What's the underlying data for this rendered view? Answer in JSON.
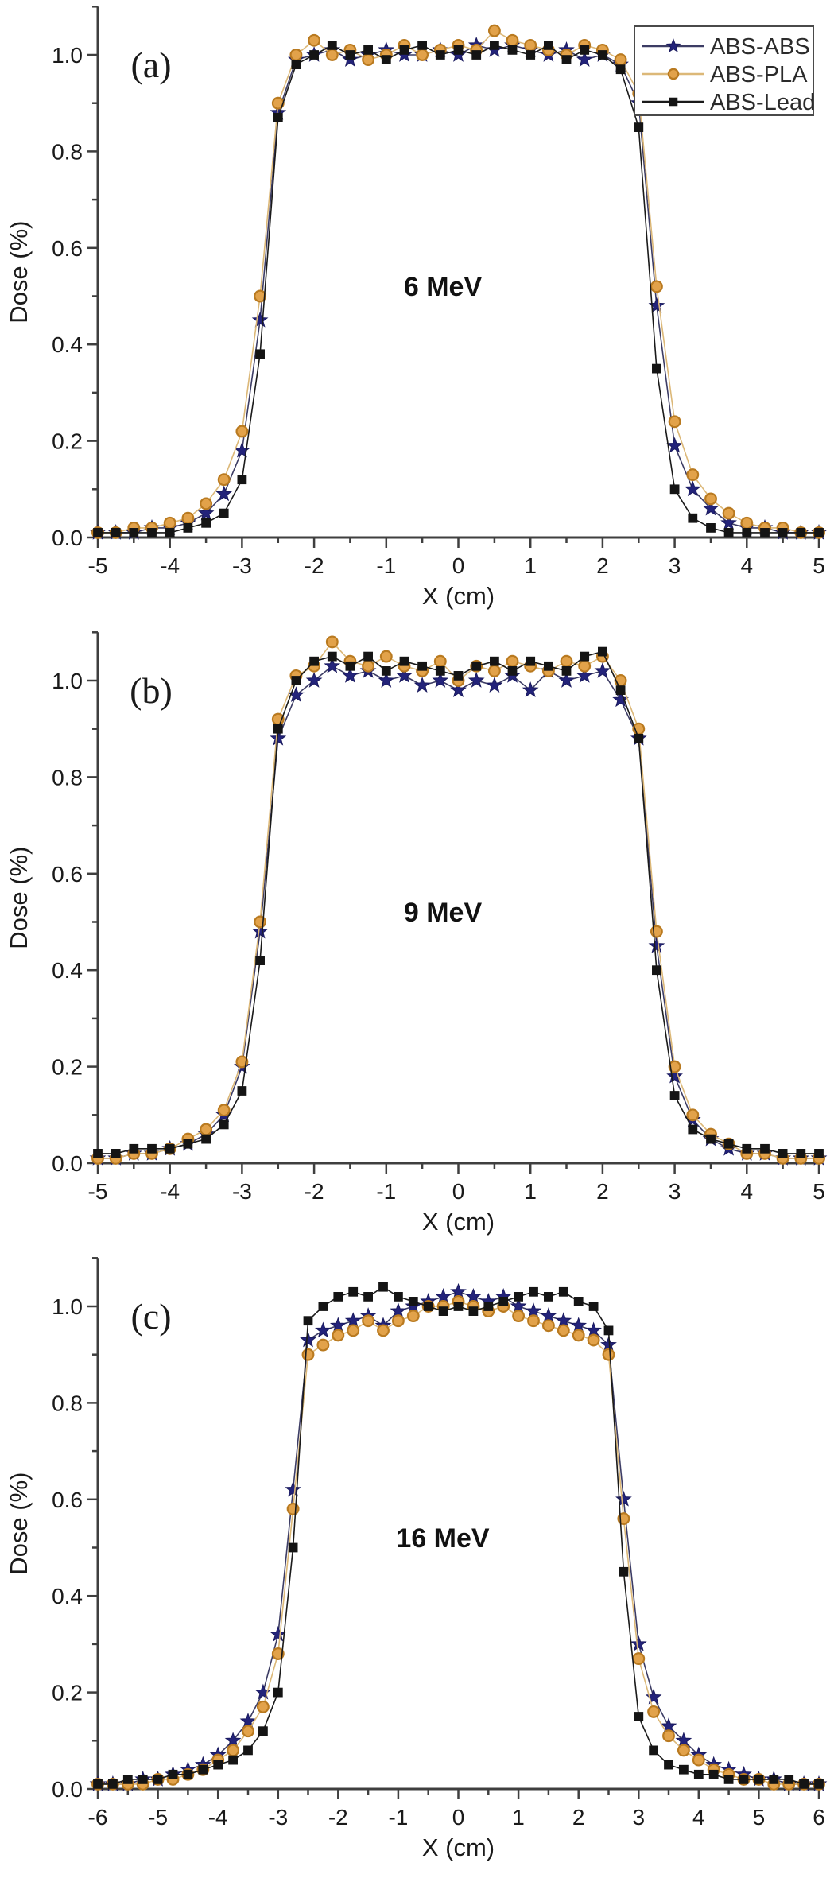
{
  "figure": {
    "background": "#ffffff",
    "text_color": "#1a1a1a",
    "axis_color": "#3f3f3f"
  },
  "chart_data": [
    {
      "id": "a",
      "type": "scatter",
      "panel_label": "(a)",
      "annotation": "6 MeV",
      "xlabel": "X (cm)",
      "ylabel": "Dose (%)",
      "xlim": [
        -5,
        5
      ],
      "ylim": [
        0,
        1.1
      ],
      "x_major_ticks": [
        -5,
        -4,
        -3,
        -2,
        -1,
        0,
        1,
        2,
        3,
        4,
        5
      ],
      "y_major_ticks": [
        0.0,
        0.2,
        0.4,
        0.6,
        0.8,
        1.0
      ],
      "x_minor_step": 0.5,
      "y_minor_step": 0.1,
      "grid": false,
      "legend": {
        "show": true,
        "position": "top-right"
      },
      "x": [
        -5,
        -4.75,
        -4.5,
        -4.25,
        -4,
        -3.75,
        -3.5,
        -3.25,
        -3,
        -2.75,
        -2.5,
        -2.25,
        -2,
        -1.75,
        -1.5,
        -1.25,
        -1,
        -0.75,
        -0.5,
        -0.25,
        0,
        0.25,
        0.5,
        0.75,
        1,
        1.25,
        1.5,
        1.75,
        2,
        2.25,
        2.5,
        2.75,
        3,
        3.25,
        3.5,
        3.75,
        4,
        4.25,
        4.5,
        4.75,
        5
      ],
      "series": [
        {
          "name": "ABS-ABS",
          "marker": "star",
          "marker_color": "#23237a",
          "marker_edge": "#1a1a5e",
          "line_color": "#3c3c64",
          "values": [
            0.01,
            0.01,
            0.01,
            0.02,
            0.02,
            0.03,
            0.05,
            0.09,
            0.18,
            0.45,
            0.88,
            0.99,
            1.0,
            1.01,
            0.99,
            1.0,
            1.01,
            1.0,
            1.0,
            1.01,
            1.0,
            1.02,
            1.01,
            1.02,
            1.01,
            1.0,
            1.01,
            0.99,
            1.0,
            0.98,
            0.9,
            0.48,
            0.19,
            0.1,
            0.06,
            0.03,
            0.02,
            0.02,
            0.01,
            0.01,
            0.01
          ]
        },
        {
          "name": "ABS-PLA",
          "marker": "circle",
          "marker_color": "#e2a24a",
          "marker_edge": "#b97a20",
          "line_color": "#dcb878",
          "values": [
            0.01,
            0.01,
            0.02,
            0.02,
            0.03,
            0.04,
            0.07,
            0.12,
            0.22,
            0.5,
            0.9,
            1.0,
            1.03,
            1.0,
            1.01,
            0.99,
            1.0,
            1.02,
            1.0,
            1.01,
            1.02,
            1.01,
            1.05,
            1.03,
            1.02,
            1.01,
            1.0,
            1.02,
            1.01,
            0.99,
            0.92,
            0.52,
            0.24,
            0.13,
            0.08,
            0.05,
            0.03,
            0.02,
            0.02,
            0.01,
            0.01
          ]
        },
        {
          "name": "ABS-Lead",
          "marker": "square",
          "marker_color": "#141414",
          "marker_edge": "#000000",
          "line_color": "#1a1a1a",
          "values": [
            0.01,
            0.01,
            0.01,
            0.01,
            0.01,
            0.02,
            0.03,
            0.05,
            0.12,
            0.38,
            0.87,
            0.98,
            1.0,
            1.02,
            1.0,
            1.01,
            0.99,
            1.01,
            1.02,
            1.0,
            1.01,
            1.0,
            1.02,
            1.01,
            1.0,
            1.02,
            0.99,
            1.01,
            1.0,
            0.97,
            0.85,
            0.35,
            0.1,
            0.04,
            0.02,
            0.01,
            0.01,
            0.01,
            0.01,
            0.01,
            0.01
          ]
        }
      ]
    },
    {
      "id": "b",
      "type": "scatter",
      "panel_label": "(b)",
      "annotation": "9 MeV",
      "xlabel": "X (cm)",
      "ylabel": "Dose (%)",
      "xlim": [
        -5,
        5
      ],
      "ylim": [
        0,
        1.1
      ],
      "x_major_ticks": [
        -5,
        -4,
        -3,
        -2,
        -1,
        0,
        1,
        2,
        3,
        4,
        5
      ],
      "y_major_ticks": [
        0.0,
        0.2,
        0.4,
        0.6,
        0.8,
        1.0
      ],
      "x_minor_step": 0.5,
      "y_minor_step": 0.1,
      "grid": false,
      "legend": {
        "show": false
      },
      "x": [
        -5,
        -4.75,
        -4.5,
        -4.25,
        -4,
        -3.75,
        -3.5,
        -3.25,
        -3,
        -2.75,
        -2.5,
        -2.25,
        -2,
        -1.75,
        -1.5,
        -1.25,
        -1,
        -0.75,
        -0.5,
        -0.25,
        0,
        0.25,
        0.5,
        0.75,
        1,
        1.25,
        1.5,
        1.75,
        2,
        2.25,
        2.5,
        2.75,
        3,
        3.25,
        3.5,
        3.75,
        4,
        4.25,
        4.5,
        4.75,
        5
      ],
      "series": [
        {
          "name": "ABS-ABS",
          "marker": "star",
          "marker_color": "#23237a",
          "marker_edge": "#1a1a5e",
          "line_color": "#3c3c64",
          "values": [
            0.01,
            0.01,
            0.02,
            0.02,
            0.03,
            0.04,
            0.06,
            0.1,
            0.2,
            0.48,
            0.88,
            0.97,
            1.0,
            1.03,
            1.01,
            1.02,
            1.0,
            1.01,
            0.99,
            1.0,
            0.98,
            1.0,
            0.99,
            1.01,
            0.98,
            1.02,
            1.0,
            1.01,
            1.02,
            0.96,
            0.88,
            0.45,
            0.18,
            0.09,
            0.05,
            0.03,
            0.02,
            0.02,
            0.01,
            0.01,
            0.01
          ]
        },
        {
          "name": "ABS-PLA",
          "marker": "circle",
          "marker_color": "#e2a24a",
          "marker_edge": "#b97a20",
          "line_color": "#dcb878",
          "values": [
            0.01,
            0.01,
            0.02,
            0.02,
            0.03,
            0.05,
            0.07,
            0.11,
            0.21,
            0.5,
            0.92,
            1.01,
            1.03,
            1.08,
            1.04,
            1.03,
            1.05,
            1.03,
            1.02,
            1.04,
            1.0,
            1.03,
            1.02,
            1.04,
            1.03,
            1.02,
            1.04,
            1.03,
            1.05,
            1.0,
            0.9,
            0.48,
            0.2,
            0.1,
            0.06,
            0.04,
            0.02,
            0.02,
            0.01,
            0.01,
            0.01
          ]
        },
        {
          "name": "ABS-Lead",
          "marker": "square",
          "marker_color": "#141414",
          "marker_edge": "#000000",
          "line_color": "#1a1a1a",
          "values": [
            0.02,
            0.02,
            0.03,
            0.03,
            0.03,
            0.04,
            0.05,
            0.08,
            0.15,
            0.42,
            0.9,
            1.0,
            1.04,
            1.05,
            1.03,
            1.05,
            1.02,
            1.04,
            1.03,
            1.02,
            1.01,
            1.03,
            1.04,
            1.02,
            1.04,
            1.03,
            1.02,
            1.05,
            1.06,
            0.98,
            0.88,
            0.4,
            0.14,
            0.07,
            0.05,
            0.04,
            0.03,
            0.03,
            0.02,
            0.02,
            0.02
          ]
        }
      ]
    },
    {
      "id": "c",
      "type": "scatter",
      "panel_label": "(c)",
      "annotation": "16 MeV",
      "xlabel": "X (cm)",
      "ylabel": "Dose (%)",
      "xlim": [
        -6,
        6
      ],
      "ylim": [
        0,
        1.1
      ],
      "x_major_ticks": [
        -6,
        -5,
        -4,
        -3,
        -2,
        -1,
        0,
        1,
        2,
        3,
        4,
        5,
        6
      ],
      "y_major_ticks": [
        0.0,
        0.2,
        0.4,
        0.6,
        0.8,
        1.0
      ],
      "x_minor_step": 0.5,
      "y_minor_step": 0.1,
      "grid": false,
      "legend": {
        "show": false
      },
      "x": [
        -6,
        -5.75,
        -5.5,
        -5.25,
        -5,
        -4.75,
        -4.5,
        -4.25,
        -4,
        -3.75,
        -3.5,
        -3.25,
        -3,
        -2.75,
        -2.5,
        -2.25,
        -2,
        -1.75,
        -1.5,
        -1.25,
        -1,
        -0.75,
        -0.5,
        -0.25,
        0,
        0.25,
        0.5,
        0.75,
        1,
        1.25,
        1.5,
        1.75,
        2,
        2.25,
        2.5,
        2.75,
        3,
        3.25,
        3.5,
        3.75,
        4,
        4.25,
        4.5,
        4.75,
        5,
        5.25,
        5.5,
        5.75,
        6
      ],
      "series": [
        {
          "name": "ABS-ABS",
          "marker": "star",
          "marker_color": "#23237a",
          "marker_edge": "#1a1a5e",
          "line_color": "#3c3c64",
          "values": [
            0.01,
            0.01,
            0.01,
            0.02,
            0.02,
            0.03,
            0.04,
            0.05,
            0.07,
            0.1,
            0.14,
            0.2,
            0.32,
            0.62,
            0.93,
            0.95,
            0.96,
            0.97,
            0.98,
            0.96,
            0.99,
            1.0,
            1.01,
            1.02,
            1.03,
            1.02,
            1.01,
            1.02,
            1.0,
            0.99,
            0.98,
            0.97,
            0.96,
            0.95,
            0.92,
            0.6,
            0.3,
            0.19,
            0.13,
            0.1,
            0.07,
            0.05,
            0.04,
            0.03,
            0.02,
            0.02,
            0.01,
            0.01,
            0.01
          ]
        },
        {
          "name": "ABS-PLA",
          "marker": "circle",
          "marker_color": "#e2a24a",
          "marker_edge": "#b97a20",
          "line_color": "#dcb878",
          "values": [
            0.01,
            0.01,
            0.01,
            0.01,
            0.02,
            0.02,
            0.03,
            0.04,
            0.06,
            0.08,
            0.12,
            0.17,
            0.28,
            0.58,
            0.9,
            0.92,
            0.94,
            0.95,
            0.97,
            0.95,
            0.97,
            0.98,
            1.0,
            1.0,
            1.01,
            1.0,
            0.99,
            1.0,
            0.98,
            0.97,
            0.96,
            0.95,
            0.94,
            0.93,
            0.9,
            0.56,
            0.27,
            0.16,
            0.11,
            0.08,
            0.06,
            0.04,
            0.03,
            0.02,
            0.02,
            0.01,
            0.01,
            0.01,
            0.01
          ]
        },
        {
          "name": "ABS-Lead",
          "marker": "square",
          "marker_color": "#141414",
          "marker_edge": "#000000",
          "line_color": "#1a1a1a",
          "values": [
            0.01,
            0.01,
            0.02,
            0.02,
            0.02,
            0.03,
            0.03,
            0.04,
            0.05,
            0.06,
            0.08,
            0.12,
            0.2,
            0.5,
            0.97,
            1.0,
            1.02,
            1.03,
            1.02,
            1.04,
            1.02,
            1.01,
            1.0,
            0.99,
            1.0,
            0.99,
            1.0,
            1.01,
            1.02,
            1.03,
            1.02,
            1.03,
            1.01,
            1.0,
            0.95,
            0.45,
            0.15,
            0.08,
            0.05,
            0.04,
            0.03,
            0.03,
            0.02,
            0.02,
            0.02,
            0.02,
            0.02,
            0.01,
            0.01
          ]
        }
      ]
    }
  ]
}
